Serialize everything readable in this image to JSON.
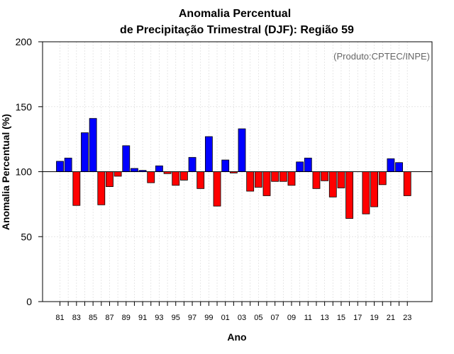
{
  "chart_data": {
    "type": "bar",
    "title": [
      "Anomalia Percentual",
      "de Precipitação Trimestral (DJF): Região 59"
    ],
    "xlabel": "Ano",
    "ylabel": "Anomalia Percentual (%)",
    "credit": "(Produto:CPTEC/INPE)",
    "ylim": [
      0,
      200
    ],
    "yticks": [
      0,
      50,
      100,
      150,
      200
    ],
    "baseline": 100,
    "grid": true,
    "colors": {
      "above": "#0000ff",
      "below": "#ff0000",
      "baseline": "#000000"
    },
    "categories": [
      "81",
      "82",
      "83",
      "84",
      "85",
      "86",
      "87",
      "88",
      "89",
      "90",
      "91",
      "92",
      "93",
      "94",
      "95",
      "96",
      "97",
      "98",
      "99",
      "00",
      "01",
      "02",
      "03",
      "04",
      "05",
      "06",
      "07",
      "08",
      "09",
      "10",
      "11",
      "12",
      "13",
      "14",
      "15",
      "16",
      "17",
      "18",
      "19",
      "20",
      "21",
      "22",
      "23"
    ],
    "tick_labels": [
      "81",
      "83",
      "85",
      "87",
      "89",
      "91",
      "93",
      "95",
      "97",
      "99",
      "01",
      "03",
      "05",
      "07",
      "09",
      "11",
      "13",
      "15",
      "17",
      "19",
      "21",
      "23"
    ],
    "values": [
      108,
      110.5,
      74,
      130,
      141,
      74.5,
      88.5,
      96.5,
      120,
      102.5,
      101,
      91.5,
      104.5,
      98.5,
      89.5,
      93.5,
      111,
      87,
      127,
      73.5,
      109,
      99,
      133,
      85,
      88,
      81.5,
      92.5,
      92.5,
      89.5,
      107.5,
      110.5,
      87,
      93,
      80.5,
      87.5,
      64,
      100,
      67.5,
      73,
      90,
      110,
      107,
      81.5
    ]
  }
}
